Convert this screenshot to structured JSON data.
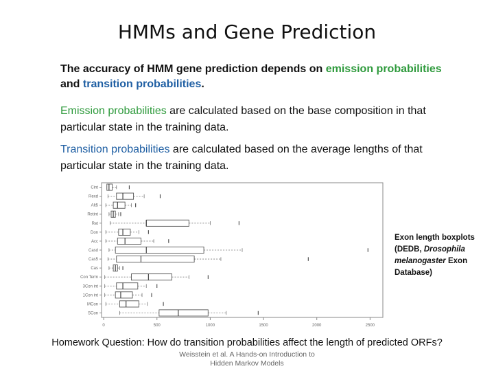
{
  "slide": {
    "title": "HMMs and Gene Prediction",
    "para1": {
      "pre": "The accuracy of HMM  gene prediction depends on ",
      "t1": "emission probabilities",
      "mid": " and ",
      "t2": "transition probabilities",
      "post": "."
    },
    "para2": {
      "term": "Emission probabilities",
      "rest": " are calculated based on the base composition in that particular state in the training data."
    },
    "para3": {
      "term": "Transition probabilities",
      "rest": " are calculated based on the average lengths of that particular state in the training data."
    },
    "caption": {
      "l1": "Exon length boxplots",
      "l2a": "(DEDB, ",
      "l2b": "Drosophila",
      "l3": "melanogaster",
      "l3b": " Exon",
      "l4": "Database)"
    },
    "homework": "Homework Question: How do transition probabilities affect the length of predicted ORFs?",
    "citation_l1": "Weisstein et al. A Hands-on Introduction to",
    "citation_l2": "Hidden Markov Models"
  },
  "chart_data": {
    "type": "boxplot",
    "categories": [
      "Cint",
      "Rexd",
      "Alt5",
      "Retint",
      "Ret",
      "Don",
      "Acc",
      "Casd",
      "Cas5",
      "Cas",
      "Con Term",
      "3Con int",
      "1Con int",
      "MCon",
      "SCon"
    ],
    "x_ticks": [
      0,
      500,
      1000,
      1500,
      2000,
      2500
    ],
    "xlim": [
      -20,
      2620
    ],
    "boxes": [
      {
        "wlo": 30,
        "q1": 30,
        "med": 50,
        "q3": 80,
        "whi": 120,
        "outlier": 240
      },
      {
        "wlo": 40,
        "q1": 120,
        "med": 180,
        "q3": 280,
        "whi": 380,
        "outlier": 530
      },
      {
        "wlo": 20,
        "q1": 90,
        "med": 130,
        "q3": 200,
        "whi": 260,
        "outlier": 300
      },
      {
        "wlo": 50,
        "q1": 70,
        "med": 90,
        "q3": 110,
        "whi": 140,
        "outlier": 160
      },
      {
        "wlo": 60,
        "q1": 400,
        "med": 400,
        "q3": 800,
        "whi": 1000,
        "outlier": 1270
      },
      {
        "wlo": 20,
        "q1": 140,
        "med": 180,
        "q3": 250,
        "whi": 330,
        "outlier": 420
      },
      {
        "wlo": 20,
        "q1": 130,
        "med": 200,
        "q3": 350,
        "whi": 470,
        "outlier": 610
      },
      {
        "wlo": 50,
        "q1": 110,
        "med": 400,
        "q3": 940,
        "whi": 1300,
        "outlier": 2480
      },
      {
        "wlo": 40,
        "q1": 120,
        "med": 350,
        "q3": 850,
        "whi": 1100,
        "outlier": 1920
      },
      {
        "wlo": 50,
        "q1": 90,
        "med": 110,
        "q3": 130,
        "whi": 150,
        "outlier": 180
      },
      {
        "wlo": 10,
        "q1": 260,
        "med": 420,
        "q3": 640,
        "whi": 800,
        "outlier": 980
      },
      {
        "wlo": 10,
        "q1": 120,
        "med": 180,
        "q3": 320,
        "whi": 400,
        "outlier": 500
      },
      {
        "wlo": 10,
        "q1": 110,
        "med": 160,
        "q3": 270,
        "whi": 360,
        "outlier": 450
      },
      {
        "wlo": 20,
        "q1": 150,
        "med": 210,
        "q3": 330,
        "whi": 410,
        "outlier": 560
      },
      {
        "wlo": 150,
        "q1": 520,
        "med": 700,
        "q3": 980,
        "whi": 1150,
        "outlier": 1450
      }
    ]
  }
}
